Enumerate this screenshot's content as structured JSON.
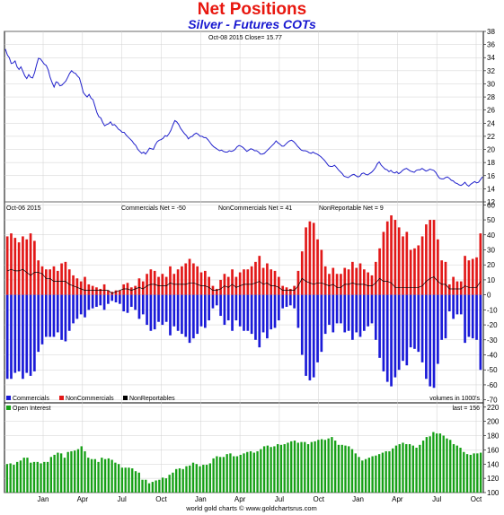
{
  "title": "Net Positions",
  "subtitle": "Silver - Futures COTs",
  "footer": "world gold charts © www.goldchartsrus.com",
  "colors": {
    "price_line": "#2222cc",
    "commercials": "#1a1ad8",
    "noncommercials": "#e21818",
    "nonreportables": "#000000",
    "open_interest": "#16a016",
    "grid": "#d0d0d0",
    "frame": "#000000"
  },
  "chart_data": [
    {
      "type": "line",
      "header": "Oct-08  2015     Close= 15.77",
      "y_ticks": [
        12,
        14,
        16,
        18,
        20,
        22,
        24,
        26,
        28,
        30,
        32,
        34,
        36,
        38
      ],
      "ylim": [
        12,
        38
      ],
      "grid": true,
      "values": [
        35.3,
        34.4,
        34.0,
        33.1,
        33.2,
        33.5,
        32.6,
        32.2,
        32.6,
        31.9,
        31.2,
        30.8,
        31.4,
        31.0,
        30.9,
        31.7,
        32.9,
        33.9,
        33.8,
        33.4,
        33.0,
        32.8,
        32.1,
        31.0,
        30.2,
        29.5,
        30.3,
        30.2,
        29.7,
        29.8,
        30.1,
        30.4,
        31.0,
        31.6,
        32.0,
        31.7,
        31.6,
        31.2,
        30.9,
        29.9,
        28.7,
        28.3,
        28.0,
        28.4,
        27.8,
        27.6,
        26.6,
        25.6,
        25.0,
        24.8,
        24.1,
        23.6,
        23.8,
        23.9,
        24.2,
        23.7,
        23.8,
        23.5,
        23.1,
        22.9,
        22.6,
        22.6,
        22.2,
        21.9,
        21.6,
        21.3,
        20.9,
        20.6,
        20.0,
        19.7,
        19.4,
        19.6,
        19.3,
        19.7,
        20.2,
        20.1,
        20.0,
        20.7,
        21.2,
        21.4,
        21.5,
        21.7,
        22.1,
        22.0,
        22.4,
        22.9,
        23.7,
        24.4,
        24.2,
        23.8,
        23.2,
        22.8,
        22.4,
        22.1,
        21.6,
        21.9,
        22.0,
        22.3,
        22.5,
        22.3,
        22.0,
        22.0,
        21.8,
        21.8,
        21.5,
        21.1,
        20.7,
        20.4,
        20.2,
        20.0,
        19.8,
        19.9,
        19.7,
        19.6,
        19.6,
        19.8,
        19.7,
        19.8,
        20.0,
        20.4,
        20.6,
        20.5,
        20.3,
        20.0,
        19.7,
        19.9,
        20.1,
        20.0,
        19.8,
        19.8,
        19.6,
        19.3,
        19.3,
        19.4,
        19.7,
        20.0,
        20.3,
        20.6,
        20.9,
        21.3,
        21.0,
        20.8,
        20.5,
        20.5,
        20.8,
        21.1,
        21.3,
        21.4,
        21.2,
        20.9,
        20.5,
        20.2,
        19.9,
        19.8,
        19.8,
        19.7,
        19.5,
        19.4,
        19.6,
        19.4,
        19.3,
        19.1,
        18.9,
        18.6,
        18.3,
        17.9,
        17.5,
        17.4,
        17.4,
        17.6,
        17.3,
        16.9,
        16.6,
        16.3,
        15.9,
        15.8,
        15.7,
        15.9,
        16.1,
        16.2,
        16.0,
        15.8,
        15.9,
        16.3,
        16.4,
        16.2,
        16.1,
        16.3,
        16.5,
        16.8,
        17.2,
        17.8,
        18.1,
        17.6,
        17.3,
        17.0,
        16.9,
        16.6,
        16.8,
        16.5,
        16.4,
        16.6,
        16.3,
        16.5,
        16.8,
        17.0,
        17.1,
        16.9,
        16.7,
        16.6,
        16.5,
        16.8,
        16.9,
        16.9,
        17.1,
        16.9,
        16.7,
        16.8,
        17.0,
        16.9,
        16.8,
        16.5,
        16.0,
        15.6,
        15.5,
        15.5,
        15.7,
        15.8,
        15.6,
        15.3,
        15.2,
        14.9,
        14.8,
        14.6,
        14.5,
        14.7,
        15.0,
        14.6,
        14.4,
        14.7,
        14.9,
        15.1,
        14.9,
        15.0,
        15.4,
        15.8
      ]
    },
    {
      "type": "bar",
      "header": {
        "date": "Oct-06  2015",
        "commercials": "Commercials Net = -50",
        "noncommercials": "NonCommercials Net = 41",
        "nonreportables": "NonReportable Net = 9"
      },
      "y_ticks": [
        -70,
        -60,
        -50,
        -40,
        -30,
        -20,
        -10,
        0,
        10,
        20,
        30,
        40,
        50,
        60
      ],
      "ylim": [
        -72,
        62
      ],
      "grid": true,
      "legend": [
        "Commercials",
        "NonCommercials",
        "NonReportables"
      ],
      "units_note": "volumes in 1000's",
      "series": [
        {
          "name": "NonCommercials",
          "values": [
            39,
            41,
            38,
            35,
            39,
            37,
            41,
            36,
            23,
            19,
            17,
            17,
            19,
            16,
            21,
            22,
            17,
            13,
            11,
            9,
            12,
            7,
            6,
            5,
            4,
            7,
            3,
            2,
            3,
            3,
            7,
            8,
            5,
            6,
            11,
            9,
            14,
            17,
            16,
            12,
            14,
            12,
            19,
            14,
            17,
            19,
            21,
            24,
            21,
            19,
            15,
            16,
            12,
            6,
            4,
            10,
            14,
            12,
            17,
            12,
            15,
            17,
            17,
            19,
            22,
            26,
            18,
            21,
            17,
            16,
            12,
            6,
            5,
            4,
            6,
            16,
            29,
            45,
            49,
            48,
            37,
            30,
            19,
            14,
            18,
            14,
            14,
            18,
            17,
            22,
            18,
            21,
            17,
            15,
            13,
            22,
            31,
            42,
            49,
            53,
            50,
            45,
            39,
            42,
            30,
            31,
            33,
            39,
            47,
            50,
            50,
            37,
            23,
            22,
            7,
            12,
            9,
            9,
            26,
            23,
            24,
            25,
            41
          ]
        },
        {
          "name": "Commercials",
          "values": [
            -56,
            -56,
            -52,
            -51,
            -56,
            -52,
            -54,
            -51,
            -38,
            -33,
            -28,
            -28,
            -28,
            -25,
            -30,
            -31,
            -24,
            -19,
            -16,
            -13,
            -15,
            -10,
            -9,
            -8,
            -7,
            -10,
            -6,
            -4,
            -5,
            -6,
            -11,
            -12,
            -8,
            -10,
            -16,
            -13,
            -20,
            -24,
            -23,
            -18,
            -20,
            -18,
            -27,
            -21,
            -24,
            -26,
            -28,
            -32,
            -29,
            -26,
            -21,
            -22,
            -17,
            -9,
            -7,
            -14,
            -20,
            -17,
            -24,
            -17,
            -21,
            -24,
            -24,
            -26,
            -30,
            -35,
            -25,
            -29,
            -23,
            -22,
            -17,
            -9,
            -8,
            -7,
            -9,
            -22,
            -40,
            -54,
            -57,
            -55,
            -45,
            -38,
            -26,
            -20,
            -25,
            -19,
            -19,
            -25,
            -24,
            -30,
            -25,
            -28,
            -24,
            -21,
            -19,
            -30,
            -42,
            -51,
            -58,
            -61,
            -55,
            -50,
            -44,
            -47,
            -35,
            -36,
            -38,
            -45,
            -56,
            -61,
            -62,
            -46,
            -30,
            -29,
            -11,
            -16,
            -13,
            -13,
            -32,
            -28,
            -29,
            -30,
            -50
          ]
        },
        {
          "name": "NonReportables",
          "values": [
            16,
            17,
            16,
            16,
            17,
            15,
            13,
            15,
            15,
            14,
            11,
            11,
            9,
            9,
            9,
            9,
            7,
            6,
            5,
            4,
            3,
            3,
            3,
            3,
            3,
            3,
            3,
            1,
            2,
            3,
            4,
            4,
            3,
            4,
            5,
            4,
            6,
            7,
            7,
            6,
            6,
            6,
            8,
            7,
            7,
            7,
            7,
            8,
            8,
            7,
            6,
            6,
            5,
            3,
            3,
            4,
            6,
            5,
            7,
            5,
            6,
            7,
            7,
            7,
            8,
            9,
            7,
            8,
            6,
            6,
            5,
            3,
            3,
            3,
            3,
            6,
            11,
            9,
            8,
            7,
            8,
            8,
            7,
            6,
            7,
            5,
            5,
            7,
            7,
            8,
            7,
            7,
            7,
            6,
            6,
            8,
            11,
            9,
            9,
            8,
            5,
            5,
            5,
            5,
            5,
            5,
            5,
            6,
            9,
            11,
            12,
            9,
            7,
            7,
            4,
            4,
            4,
            4,
            6,
            5,
            5,
            5,
            9
          ]
        }
      ]
    },
    {
      "type": "bar",
      "legend": [
        "Open Interest"
      ],
      "last_label": "last = 156",
      "y_ticks": [
        100,
        120,
        140,
        160,
        180,
        200,
        220
      ],
      "ylim": [
        100,
        226
      ],
      "grid": true,
      "x_labels": [
        "Jan",
        "Apr",
        "Jul",
        "Oct",
        "Jan",
        "Apr",
        "Jul",
        "Oct",
        "Jan",
        "Apr",
        "Jul",
        "Oct"
      ],
      "values": [
        140,
        141,
        139,
        143,
        145,
        149,
        149,
        142,
        143,
        143,
        141,
        143,
        143,
        150,
        153,
        156,
        155,
        149,
        157,
        158,
        159,
        161,
        165,
        158,
        149,
        147,
        147,
        143,
        149,
        147,
        148,
        146,
        142,
        140,
        135,
        135,
        135,
        134,
        130,
        128,
        118,
        118,
        113,
        115,
        117,
        118,
        121,
        120,
        125,
        128,
        133,
        134,
        133,
        137,
        138,
        142,
        140,
        137,
        139,
        139,
        141,
        148,
        151,
        150,
        150,
        154,
        155,
        151,
        151,
        153,
        155,
        157,
        158,
        156,
        158,
        161,
        165,
        166,
        164,
        165,
        168,
        167,
        168,
        170,
        172,
        173,
        170,
        171,
        171,
        168,
        171,
        172,
        174,
        175,
        174,
        176,
        178,
        173,
        167,
        167,
        166,
        165,
        161,
        155,
        150,
        145,
        147,
        149,
        151,
        152,
        154,
        156,
        158,
        158,
        162,
        166,
        168,
        170,
        168,
        168,
        166,
        163,
        167,
        173,
        178,
        179,
        185,
        183,
        183,
        180,
        176,
        174,
        168,
        166,
        163,
        157,
        154,
        153,
        155,
        155,
        156
      ]
    }
  ]
}
